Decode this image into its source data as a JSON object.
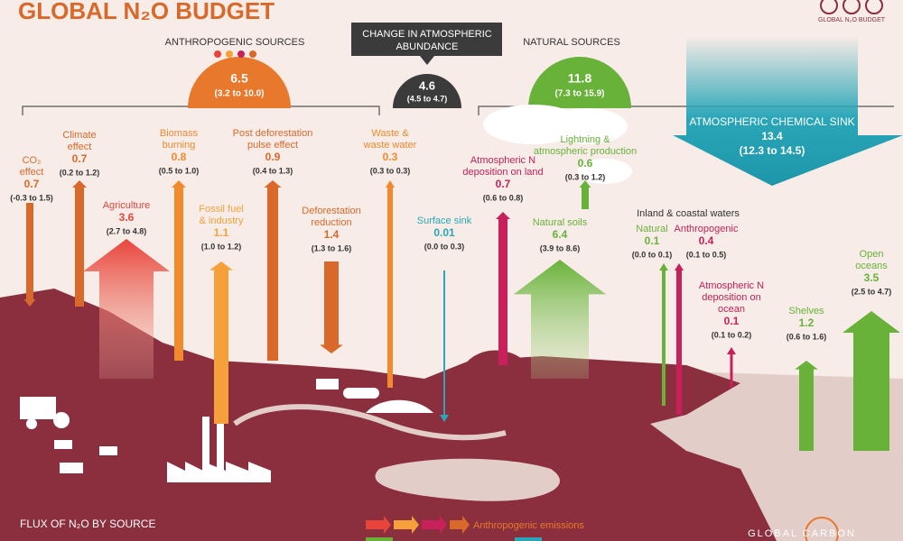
{
  "header": {
    "title": "GLOBAL N₂O BUDGET",
    "badge": "GLOBAL N₂O BUDGET"
  },
  "totals": {
    "anthropogenic": {
      "label": "ANTHROPOGENIC SOURCES",
      "value": "6.5",
      "range": "(3.2 to 10.0)"
    },
    "change": {
      "label": [
        "CHANGE IN ATMOSPHERIC",
        "ABUNDANCE"
      ],
      "value": "4.6",
      "range": "(4.5 to 4.7)"
    },
    "natural": {
      "label": "NATURAL SOURCES",
      "value": "11.8",
      "range": "(7.3 to 15.9)"
    },
    "sink": {
      "label": "ATMOSPHERIC CHEMICAL SINK",
      "value": "13.4",
      "range": "(12.3 to 14.5)"
    }
  },
  "inland_header": "Inland & coastal waters",
  "fluxes": [
    {
      "name": [
        "CO₂",
        "effect"
      ],
      "value": "0.7",
      "range": "(-0.3 to 1.5)"
    },
    {
      "name": [
        "Climate",
        "effect"
      ],
      "value": "0.7",
      "range": "(0.2 to 1.2)"
    },
    {
      "name": [
        "Agriculture"
      ],
      "value": "3.6",
      "range": "(2.7 to 4.8)"
    },
    {
      "name": [
        "Biomass",
        "burning"
      ],
      "value": "0.8",
      "range": "(0.5 to 1.0)"
    },
    {
      "name": [
        "Fossil fuel",
        "& industry"
      ],
      "value": "1.1",
      "range": "(1.0 to 1.2)"
    },
    {
      "name": [
        "Post deforestation",
        "pulse effect"
      ],
      "value": "0.9",
      "range": "(0.4 to 1.3)"
    },
    {
      "name": [
        "Deforestation",
        "reduction"
      ],
      "value": "1.4",
      "range": "(1.3 to 1.6)"
    },
    {
      "name": [
        "Waste &",
        "waste water"
      ],
      "value": "0.3",
      "range": "(0.3 to 0.3)"
    },
    {
      "name": [
        "Surface sink"
      ],
      "value": "0.01",
      "range": "(0.0 to 0.3)"
    },
    {
      "name": [
        "Atmospheric N",
        "deposition on land"
      ],
      "value": "0.7",
      "range": "(0.6 to 0.8)"
    },
    {
      "name": [
        "Lightning &",
        "atmospheric production"
      ],
      "value": "0.6",
      "range": "(0.3 to 1.2)"
    },
    {
      "name": [
        "Natural soils"
      ],
      "value": "6.4",
      "range": "(3.9 to 8.6)"
    },
    {
      "name": [
        "Natural"
      ],
      "value": "0.1",
      "range": "(0.0 to 0.1)"
    },
    {
      "name": [
        "Anthropogenic"
      ],
      "value": "0.4",
      "range": "(0.1 to 0.5)"
    },
    {
      "name": [
        "Atmospheric N",
        "deposition on",
        "ocean"
      ],
      "value": "0.1",
      "range": "(0.1 to 0.2)"
    },
    {
      "name": [
        "Shelves"
      ],
      "value": "1.2",
      "range": "(0.6 to 1.6)"
    },
    {
      "name": [
        "Open",
        "oceans"
      ],
      "value": "3.5",
      "range": "(2.5 to 4.7)"
    }
  ],
  "footer": {
    "heading": "FLUX OF N₂O BY SOURCE",
    "legend": "Anthropogenic emissions",
    "brand": "GLOBAL CARBON"
  }
}
